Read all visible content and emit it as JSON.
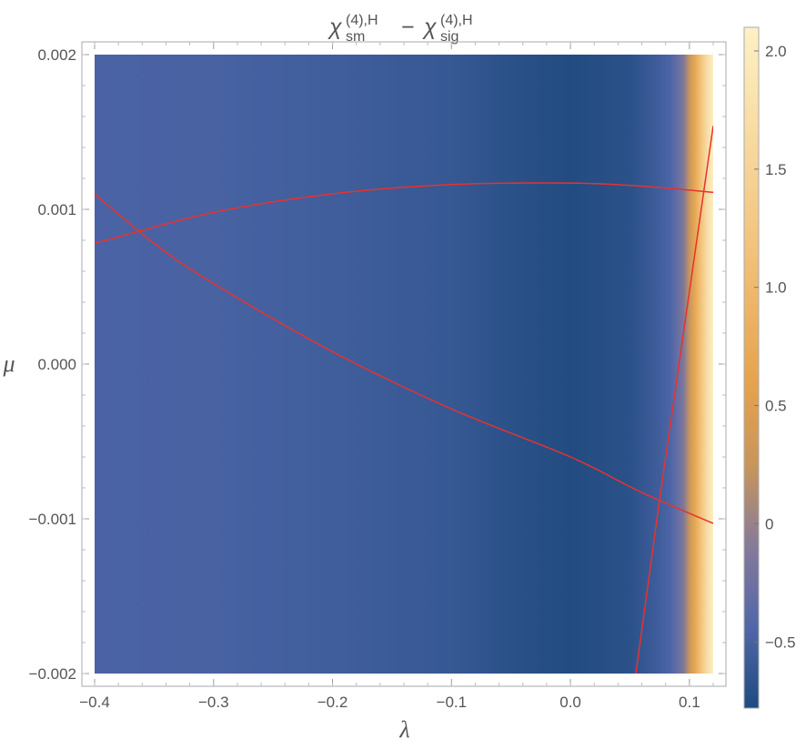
{
  "chart_data": {
    "type": "heatmap",
    "title": {
      "chi_left": "χ",
      "sup_left": "(4),H",
      "sub_left": "sm",
      "minus": "−",
      "chi_right": "χ",
      "sup_right": "(4),H",
      "sub_right": "sig"
    },
    "xlabel": "λ",
    "ylabel": "μ",
    "xlim": [
      -0.4,
      0.12
    ],
    "ylim": [
      -0.002,
      0.002
    ],
    "x_ticks": [
      {
        "value": -0.4,
        "label": "−0.4"
      },
      {
        "value": -0.3,
        "label": "−0.3"
      },
      {
        "value": -0.2,
        "label": "−0.2"
      },
      {
        "value": -0.1,
        "label": "−0.1"
      },
      {
        "value": 0.0,
        "label": "0.0"
      },
      {
        "value": 0.1,
        "label": "0.1"
      }
    ],
    "y_ticks": [
      {
        "value": -0.002,
        "label": "−0.002"
      },
      {
        "value": -0.001,
        "label": "−0.001"
      },
      {
        "value": 0.0,
        "label": "0.000"
      },
      {
        "value": 0.001,
        "label": "0.001"
      },
      {
        "value": 0.002,
        "label": "0.002"
      }
    ],
    "colorbar": {
      "range": [
        -0.78,
        2.1
      ],
      "ticks": [
        {
          "value": -0.5,
          "label": "−0.5"
        },
        {
          "value": 0.0,
          "label": "0"
        },
        {
          "value": 0.5,
          "label": "0.5"
        },
        {
          "value": 1.0,
          "label": "1.0"
        },
        {
          "value": 1.5,
          "label": "1.5"
        },
        {
          "value": 2.0,
          "label": "2.0"
        }
      ],
      "stops": [
        {
          "value": -0.78,
          "color": "#1f4a7f"
        },
        {
          "value": -0.45,
          "color": "#4f66a8"
        },
        {
          "value": -0.1,
          "color": "#857a9a"
        },
        {
          "value": 0.25,
          "color": "#c8965c"
        },
        {
          "value": 0.6,
          "color": "#e6a34c"
        },
        {
          "value": 1.2,
          "color": "#f2c57e"
        },
        {
          "value": 2.1,
          "color": "#fdf1c6"
        }
      ]
    },
    "field_profile": [
      {
        "x": -0.4,
        "v": -0.48
      },
      {
        "x": -0.3,
        "v": -0.5
      },
      {
        "x": -0.2,
        "v": -0.55
      },
      {
        "x": -0.1,
        "v": -0.62
      },
      {
        "x": -0.05,
        "v": -0.7
      },
      {
        "x": 0.0,
        "v": -0.76
      },
      {
        "x": 0.05,
        "v": -0.7
      },
      {
        "x": 0.075,
        "v": -0.55
      },
      {
        "x": 0.085,
        "v": -0.45
      },
      {
        "x": 0.095,
        "v": -0.15
      },
      {
        "x": 0.1,
        "v": 0.25
      },
      {
        "x": 0.105,
        "v": 0.7
      },
      {
        "x": 0.11,
        "v": 1.2
      },
      {
        "x": 0.115,
        "v": 1.7
      },
      {
        "x": 0.12,
        "v": 2.05
      }
    ],
    "curve_color": "#e8322e",
    "curves": [
      {
        "points": [
          [
            -0.4,
            0.00078
          ],
          [
            -0.3,
            0.00098
          ],
          [
            -0.2,
            0.0011
          ],
          [
            -0.1,
            0.00116
          ],
          [
            0.0,
            0.00117
          ],
          [
            0.06,
            0.00115
          ],
          [
            0.12,
            0.00111
          ]
        ]
      },
      {
        "points": [
          [
            -0.4,
            0.0011
          ],
          [
            -0.35,
            0.00078
          ],
          [
            -0.3,
            0.00052
          ],
          [
            -0.2,
            8e-05
          ],
          [
            -0.1,
            -0.00029
          ],
          [
            0.0,
            -0.0006
          ],
          [
            0.06,
            -0.00083
          ],
          [
            0.12,
            -0.00103
          ]
        ]
      },
      {
        "points": [
          [
            0.055,
            -0.002
          ],
          [
            0.074,
            -0.00093
          ],
          [
            0.12,
            0.00154
          ]
        ]
      }
    ]
  }
}
